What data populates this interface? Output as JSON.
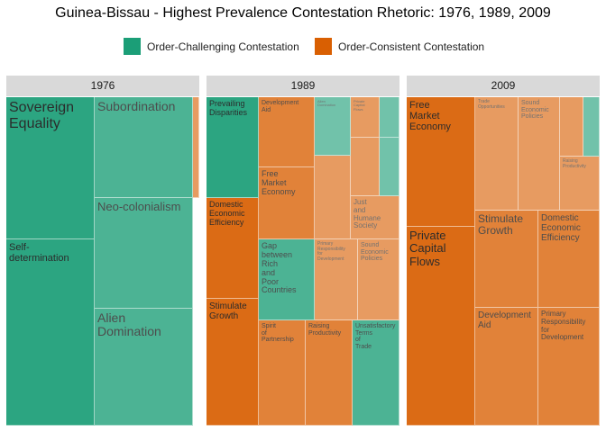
{
  "title": "Guinea-Bissau - Highest Prevalence Contestation Rhetoric: 1976, 1989, 2009",
  "colors": {
    "order_challenging": "#1b9e77",
    "order_consistent": "#d95f02"
  },
  "chart_data": {
    "type": "treemap",
    "title": "Guinea-Bissau - Highest Prevalence Contestation Rhetoric: 1976, 1989, 2009",
    "legend": {
      "placement": "top",
      "entries": [
        "Order-Challenging Contestation",
        "Order-Consistent Contestation"
      ]
    },
    "facets": [
      {
        "label": "1976",
        "tiles": [
          {
            "label": "Sovereign\n  Equality",
            "group": "Order-Challenging Contestation",
            "prevalence": "high"
          },
          {
            "label": "Self-\ndetermination",
            "group": "Order-Challenging Contestation",
            "prevalence": "high"
          },
          {
            "label": "Subordination",
            "group": "Order-Challenging Contestation",
            "prevalence": "medium"
          },
          {
            "label": "Neo-colonialism",
            "group": "Order-Challenging Contestation",
            "prevalence": "medium"
          },
          {
            "label": "Alien\n  Domination",
            "group": "Order-Challenging Contestation",
            "prevalence": "medium"
          },
          {
            "label": "",
            "group": "Order-Consistent Contestation",
            "prevalence": "low"
          }
        ]
      },
      {
        "label": "1989",
        "tiles": [
          {
            "label": "Prevailing\nDisparities",
            "group": "Order-Challenging Contestation",
            "prevalence": "high"
          },
          {
            "label": "Development\nAid",
            "group": "Order-Consistent Contestation",
            "prevalence": "medium"
          },
          {
            "label": "Alien\nDomination",
            "group": "Order-Challenging Contestation",
            "prevalence": "low"
          },
          {
            "label": "Private\nCapital\nFlows",
            "group": "Order-Consistent Contestation",
            "prevalence": "low"
          },
          {
            "label": "",
            "group": "Order-Challenging Contestation",
            "prevalence": "low"
          },
          {
            "label": "Domestic\nEconomic\nEfficiency",
            "group": "Order-Consistent Contestation",
            "prevalence": "high"
          },
          {
            "label": "Free\n  Market\n  Economy",
            "group": "Order-Consistent Contestation",
            "prevalence": "medium"
          },
          {
            "label": "",
            "group": "Order-Consistent Contestation",
            "prevalence": "low"
          },
          {
            "label": "",
            "group": "Order-Consistent Contestation",
            "prevalence": "low"
          },
          {
            "label": "",
            "group": "Order-Challenging Contestation",
            "prevalence": "low"
          },
          {
            "label": "Just\n  and\n  Humane\n  Society",
            "group": "Order-Consistent Contestation",
            "prevalence": "low"
          },
          {
            "label": "Gap\n  between\n  Rich\n  and\n  Poor\n  Countries",
            "group": "Order-Challenging Contestation",
            "prevalence": "medium"
          },
          {
            "label": "Primary\nResponsibility\nfor\nDevelopment",
            "group": "Order-Consistent Contestation",
            "prevalence": "low"
          },
          {
            "label": "Sound\n  Economic\n  Policies",
            "group": "Order-Consistent Contestation",
            "prevalence": "low"
          },
          {
            "label": "Stimulate\n  Growth",
            "group": "Order-Consistent Contestation",
            "prevalence": "high"
          },
          {
            "label": "Spirit\n  of\n  Partnership",
            "group": "Order-Consistent Contestation",
            "prevalence": "medium"
          },
          {
            "label": "Raising\n  Productivity",
            "group": "Order-Consistent Contestation",
            "prevalence": "medium"
          },
          {
            "label": "Unsatisfactory\n  Terms\n  of\n  Trade",
            "group": "Order-Challenging Contestation",
            "prevalence": "medium"
          }
        ]
      },
      {
        "label": "2009",
        "tiles": [
          {
            "label": "Free\n  Market\n  Economy",
            "group": "Order-Consistent Contestation",
            "prevalence": "high"
          },
          {
            "label": "Private\n  Capital\n  Flows",
            "group": "Order-Consistent Contestation",
            "prevalence": "high"
          },
          {
            "label": "Trade\nOpportunities",
            "group": "Order-Consistent Contestation",
            "prevalence": "low"
          },
          {
            "label": "Sound\n  Economic\n  Policies",
            "group": "Order-Consistent Contestation",
            "prevalence": "low"
          },
          {
            "label": "",
            "group": "Order-Consistent Contestation",
            "prevalence": "low"
          },
          {
            "label": "",
            "group": "Order-Challenging Contestation",
            "prevalence": "low"
          },
          {
            "label": "Raising\nProductivity",
            "group": "Order-Consistent Contestation",
            "prevalence": "low"
          },
          {
            "label": "Stimulate\n  Growth",
            "group": "Order-Consistent Contestation",
            "prevalence": "medium"
          },
          {
            "label": "Domestic\n  Economic\n  Efficiency",
            "group": "Order-Consistent Contestation",
            "prevalence": "medium"
          },
          {
            "label": "Development\n  Aid",
            "group": "Order-Consistent Contestation",
            "prevalence": "medium"
          },
          {
            "label": "Primary\n  Responsibility\n  for\n  Development",
            "group": "Order-Consistent Contestation",
            "prevalence": "medium"
          }
        ]
      }
    ]
  }
}
